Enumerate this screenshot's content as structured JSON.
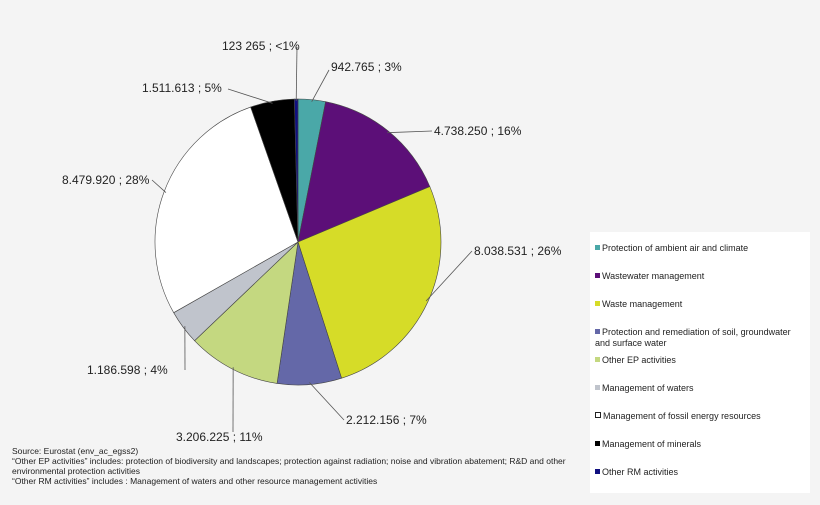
{
  "chart_data": {
    "type": "pie",
    "legend_position": "right",
    "slices": [
      {
        "name": "Protection of ambient air and climate",
        "value": 942765,
        "label": "942.765  ; 3%",
        "color": "#4aa8a8"
      },
      {
        "name": "Wastewater management",
        "value": 4738250,
        "label": "4.738.250  ; 16%",
        "color": "#5c0f78"
      },
      {
        "name": "Waste management",
        "value": 8038531,
        "label": "8.038.531  ; 26%",
        "color": "#d6dc28"
      },
      {
        "name": "Protection and remediation of soil, groundwater and surface water",
        "value": 2212156,
        "label": "2.212.156  ; 7%",
        "color": "#6468a8"
      },
      {
        "name": "Other EP activities",
        "value": 3206225,
        "label": "3.206.225  ; 11%",
        "color": "#c4d880"
      },
      {
        "name": "Management of waters",
        "value": 1186598,
        "label": "1.186.598  ; 4%",
        "color": "#c0c4cc"
      },
      {
        "name": "Management of fossil energy resources",
        "value": 8479920,
        "label": "8.479.920  ; 28%",
        "color": "#ffffff"
      },
      {
        "name": "Management of minerals",
        "value": 1511613,
        "label": "1.511.613  ; 5%",
        "color": "#000000"
      },
      {
        "name": "Other RM activities",
        "value": 123265,
        "label": "123 265  ; <1%",
        "color": "#101080"
      }
    ]
  },
  "notes": [
    "Source: Eurostat (env_ac_egss2)",
    "“Other EP activities” includes: protection of biodiversity and landscapes; protection against radiation; noise and vibration abatement; R&D and other environmental protection activities",
    "“Other RM activities” includes : Management of waters and other resource management activities"
  ]
}
